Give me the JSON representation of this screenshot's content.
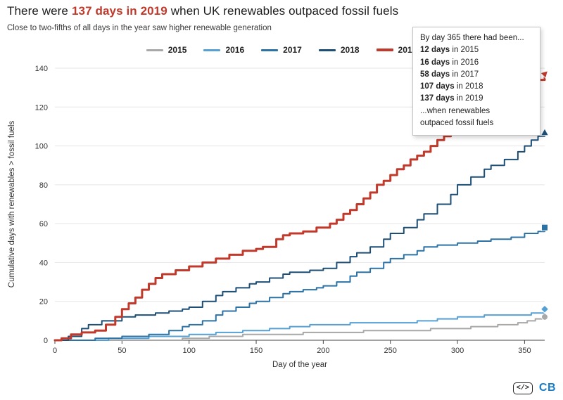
{
  "title": {
    "prefix": "There were",
    "highlight": "137 days in 2019",
    "suffix": "when UK renewables outpaced fossil fuels"
  },
  "subtitle": "Close to two-fifths of all days in the year saw higher renewable generation",
  "tooltip": {
    "header": "By day 365 there had been...",
    "entries": [
      {
        "value": "12 days",
        "label": "in 2015"
      },
      {
        "value": "16 days",
        "label": "in 2016"
      },
      {
        "value": "58 days",
        "label": "in 2017"
      },
      {
        "value": "107 days",
        "label": "in 2018"
      },
      {
        "value": "137 days",
        "label": "in 2019"
      }
    ],
    "footer_lines": [
      "...when renewables",
      "outpaced fossil fuels"
    ]
  },
  "branding": {
    "embed_icon": "</>",
    "logo_text": "CB"
  },
  "chart_data": {
    "type": "line",
    "interpolation": "step-after",
    "title": "There were 137 days in 2019 when UK renewables outpaced fossil fuels",
    "subtitle": "Close to two-fifths of all days in the year saw higher renewable generation",
    "xlabel": "Day of the year",
    "ylabel": "Cumulative days with renewables > fossil fuels",
    "xlim": [
      0,
      365
    ],
    "ylim": [
      0,
      140
    ],
    "xticks": [
      0,
      50,
      100,
      150,
      200,
      250,
      300,
      350
    ],
    "yticks": [
      0,
      20,
      40,
      60,
      80,
      100,
      120,
      140
    ],
    "grid": "horizontal",
    "legend_position": "top",
    "series": [
      {
        "name": "2015",
        "color": "#a8a8a8",
        "width": 2,
        "marker": "circle",
        "final": 12,
        "points": [
          [
            0,
            0
          ],
          [
            95,
            1
          ],
          [
            115,
            2
          ],
          [
            140,
            3
          ],
          [
            185,
            4
          ],
          [
            230,
            5
          ],
          [
            280,
            6
          ],
          [
            310,
            7
          ],
          [
            330,
            8
          ],
          [
            345,
            9
          ],
          [
            352,
            10
          ],
          [
            358,
            11
          ],
          [
            365,
            12
          ]
        ]
      },
      {
        "name": "2016",
        "color": "#57a0d3",
        "width": 2,
        "marker": "diamond",
        "final": 16,
        "points": [
          [
            0,
            0
          ],
          [
            40,
            1
          ],
          [
            70,
            2
          ],
          [
            100,
            3
          ],
          [
            120,
            4
          ],
          [
            140,
            5
          ],
          [
            160,
            6
          ],
          [
            175,
            7
          ],
          [
            190,
            8
          ],
          [
            220,
            9
          ],
          [
            270,
            10
          ],
          [
            285,
            11
          ],
          [
            300,
            12
          ],
          [
            320,
            13
          ],
          [
            355,
            14
          ],
          [
            365,
            16
          ]
        ]
      },
      {
        "name": "2017",
        "color": "#2d72a4",
        "width": 2,
        "marker": "square",
        "final": 58,
        "points": [
          [
            0,
            0
          ],
          [
            30,
            1
          ],
          [
            50,
            2
          ],
          [
            70,
            3
          ],
          [
            85,
            5
          ],
          [
            95,
            7
          ],
          [
            100,
            8
          ],
          [
            110,
            10
          ],
          [
            120,
            13
          ],
          [
            125,
            15
          ],
          [
            135,
            17
          ],
          [
            145,
            19
          ],
          [
            150,
            20
          ],
          [
            160,
            22
          ],
          [
            170,
            24
          ],
          [
            175,
            25
          ],
          [
            185,
            26
          ],
          [
            195,
            27
          ],
          [
            200,
            28
          ],
          [
            210,
            30
          ],
          [
            220,
            33
          ],
          [
            225,
            35
          ],
          [
            235,
            37
          ],
          [
            245,
            40
          ],
          [
            250,
            42
          ],
          [
            260,
            44
          ],
          [
            270,
            46
          ],
          [
            275,
            48
          ],
          [
            285,
            49
          ],
          [
            300,
            50
          ],
          [
            315,
            51
          ],
          [
            325,
            52
          ],
          [
            340,
            53
          ],
          [
            350,
            55
          ],
          [
            360,
            56
          ],
          [
            365,
            58
          ]
        ]
      },
      {
        "name": "2018",
        "color": "#1d4f76",
        "width": 2,
        "marker": "triangle",
        "final": 107,
        "points": [
          [
            0,
            0
          ],
          [
            10,
            2
          ],
          [
            20,
            6
          ],
          [
            25,
            8
          ],
          [
            35,
            10
          ],
          [
            50,
            12
          ],
          [
            60,
            13
          ],
          [
            75,
            14
          ],
          [
            85,
            15
          ],
          [
            95,
            16
          ],
          [
            100,
            17
          ],
          [
            110,
            20
          ],
          [
            120,
            23
          ],
          [
            125,
            25
          ],
          [
            135,
            27
          ],
          [
            145,
            29
          ],
          [
            150,
            30
          ],
          [
            160,
            32
          ],
          [
            170,
            34
          ],
          [
            175,
            35
          ],
          [
            190,
            36
          ],
          [
            200,
            37
          ],
          [
            210,
            40
          ],
          [
            220,
            43
          ],
          [
            225,
            45
          ],
          [
            235,
            48
          ],
          [
            245,
            52
          ],
          [
            250,
            55
          ],
          [
            260,
            58
          ],
          [
            270,
            62
          ],
          [
            275,
            65
          ],
          [
            285,
            70
          ],
          [
            295,
            75
          ],
          [
            300,
            80
          ],
          [
            310,
            84
          ],
          [
            320,
            88
          ],
          [
            325,
            90
          ],
          [
            335,
            93
          ],
          [
            345,
            97
          ],
          [
            350,
            100
          ],
          [
            355,
            103
          ],
          [
            360,
            105
          ],
          [
            365,
            107
          ]
        ]
      },
      {
        "name": "2019",
        "color": "#c0392b",
        "width": 3,
        "marker": "arrow",
        "final": 137,
        "points": [
          [
            0,
            0
          ],
          [
            5,
            1
          ],
          [
            12,
            3
          ],
          [
            20,
            4
          ],
          [
            30,
            5
          ],
          [
            38,
            8
          ],
          [
            45,
            12
          ],
          [
            50,
            16
          ],
          [
            55,
            19
          ],
          [
            60,
            22
          ],
          [
            65,
            26
          ],
          [
            70,
            29
          ],
          [
            75,
            32
          ],
          [
            80,
            34
          ],
          [
            90,
            36
          ],
          [
            100,
            38
          ],
          [
            110,
            40
          ],
          [
            120,
            42
          ],
          [
            130,
            44
          ],
          [
            140,
            46
          ],
          [
            150,
            47
          ],
          [
            155,
            48
          ],
          [
            165,
            52
          ],
          [
            170,
            54
          ],
          [
            175,
            55
          ],
          [
            185,
            56
          ],
          [
            195,
            58
          ],
          [
            205,
            60
          ],
          [
            210,
            62
          ],
          [
            215,
            65
          ],
          [
            220,
            67
          ],
          [
            225,
            70
          ],
          [
            230,
            73
          ],
          [
            235,
            76
          ],
          [
            240,
            80
          ],
          [
            245,
            82
          ],
          [
            250,
            85
          ],
          [
            255,
            88
          ],
          [
            260,
            90
          ],
          [
            265,
            93
          ],
          [
            270,
            95
          ],
          [
            275,
            97
          ],
          [
            280,
            100
          ],
          [
            285,
            103
          ],
          [
            290,
            105
          ],
          [
            295,
            108
          ],
          [
            300,
            110
          ],
          [
            310,
            112
          ],
          [
            320,
            114
          ],
          [
            330,
            117
          ],
          [
            335,
            120
          ],
          [
            340,
            123
          ],
          [
            345,
            126
          ],
          [
            350,
            128
          ],
          [
            355,
            131
          ],
          [
            360,
            134
          ],
          [
            365,
            137
          ]
        ]
      }
    ]
  }
}
